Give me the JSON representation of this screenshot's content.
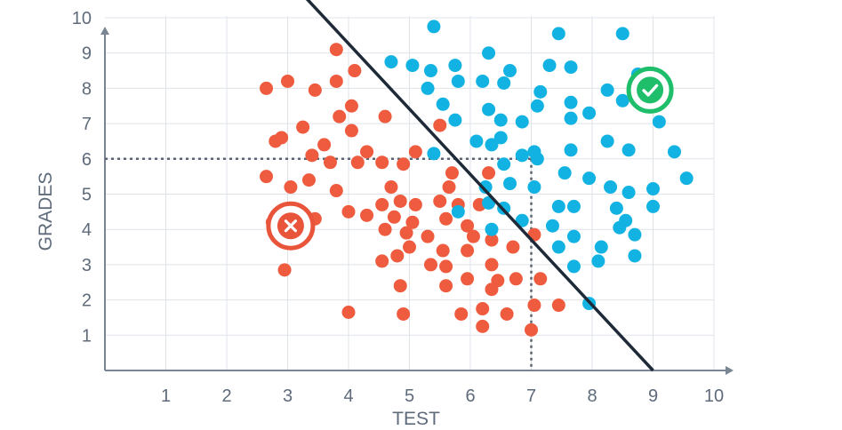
{
  "chart_data": {
    "type": "scatter",
    "title": "",
    "xlabel": "TEST",
    "ylabel": "GRADES",
    "xlim": [
      0,
      10
    ],
    "ylim": [
      0,
      10
    ],
    "grid": true,
    "xticks": [
      1,
      2,
      3,
      4,
      5,
      6,
      7,
      8,
      9,
      10
    ],
    "yticks": [
      1,
      2,
      3,
      4,
      5,
      6,
      7,
      8,
      9,
      10
    ],
    "colors": {
      "rejected": "#ee5b3e",
      "accepted": "#12b3e2",
      "reject_marker": "#e9553b",
      "accept_marker": "#1fbe6a"
    },
    "series": [
      {
        "name": "rejected",
        "points": [
          [
            2.65,
            8.0
          ],
          [
            3.0,
            8.2
          ],
          [
            3.45,
            7.95
          ],
          [
            3.8,
            9.1
          ],
          [
            3.8,
            8.2
          ],
          [
            4.1,
            8.5
          ],
          [
            4.05,
            7.5
          ],
          [
            3.25,
            6.9
          ],
          [
            3.85,
            7.2
          ],
          [
            4.05,
            6.8
          ],
          [
            4.6,
            7.2
          ],
          [
            2.8,
            6.5
          ],
          [
            2.9,
            6.6
          ],
          [
            3.4,
            6.1
          ],
          [
            3.6,
            6.4
          ],
          [
            4.3,
            6.2
          ],
          [
            4.15,
            5.9
          ],
          [
            3.7,
            5.9
          ],
          [
            4.55,
            5.9
          ],
          [
            4.9,
            5.85
          ],
          [
            5.1,
            6.2
          ],
          [
            5.5,
            6.95
          ],
          [
            5.7,
            5.6
          ],
          [
            6.3,
            5.6
          ],
          [
            2.65,
            5.5
          ],
          [
            3.05,
            5.2
          ],
          [
            3.35,
            5.4
          ],
          [
            3.8,
            5.1
          ],
          [
            4.7,
            5.2
          ],
          [
            4.85,
            4.8
          ],
          [
            5.1,
            4.7
          ],
          [
            5.5,
            4.8
          ],
          [
            5.65,
            5.2
          ],
          [
            5.8,
            4.7
          ],
          [
            6.15,
            4.7
          ],
          [
            2.75,
            4.2
          ],
          [
            3.45,
            4.3
          ],
          [
            4.0,
            4.5
          ],
          [
            4.3,
            4.4
          ],
          [
            4.55,
            4.7
          ],
          [
            4.75,
            4.35
          ],
          [
            5.05,
            4.2
          ],
          [
            5.6,
            4.3
          ],
          [
            5.95,
            4.1
          ],
          [
            4.6,
            4.0
          ],
          [
            4.95,
            3.9
          ],
          [
            5.3,
            3.8
          ],
          [
            5.55,
            3.4
          ],
          [
            6.05,
            3.8
          ],
          [
            6.35,
            3.7
          ],
          [
            6.7,
            3.5
          ],
          [
            7.05,
            3.85
          ],
          [
            4.55,
            3.1
          ],
          [
            4.8,
            3.25
          ],
          [
            5.0,
            3.5
          ],
          [
            5.35,
            3.0
          ],
          [
            5.6,
            2.95
          ],
          [
            5.95,
            3.4
          ],
          [
            6.35,
            3.0
          ],
          [
            6.45,
            2.55
          ],
          [
            6.75,
            2.6
          ],
          [
            2.95,
            2.85
          ],
          [
            4.85,
            2.4
          ],
          [
            5.6,
            2.4
          ],
          [
            5.95,
            2.6
          ],
          [
            6.35,
            2.3
          ],
          [
            7.15,
            2.6
          ],
          [
            3.0,
            4.1
          ],
          [
            6.6,
            1.6
          ],
          [
            7.05,
            1.85
          ],
          [
            7.45,
            1.85
          ],
          [
            4.0,
            1.65
          ],
          [
            4.9,
            1.6
          ],
          [
            5.85,
            1.6
          ],
          [
            6.2,
            1.75
          ],
          [
            6.2,
            1.25
          ],
          [
            7.0,
            1.15
          ]
        ]
      },
      {
        "name": "accepted",
        "points": [
          [
            5.4,
            9.75
          ],
          [
            7.45,
            9.55
          ],
          [
            8.5,
            9.55
          ],
          [
            6.3,
            9.0
          ],
          [
            4.7,
            8.75
          ],
          [
            5.05,
            8.65
          ],
          [
            5.35,
            8.5
          ],
          [
            5.75,
            8.65
          ],
          [
            6.65,
            8.5
          ],
          [
            7.3,
            8.65
          ],
          [
            7.65,
            8.6
          ],
          [
            5.3,
            8.0
          ],
          [
            5.8,
            8.2
          ],
          [
            6.2,
            8.2
          ],
          [
            6.55,
            8.15
          ],
          [
            7.15,
            7.9
          ],
          [
            7.65,
            7.6
          ],
          [
            8.25,
            7.95
          ],
          [
            8.75,
            8.4
          ],
          [
            5.55,
            7.55
          ],
          [
            5.75,
            7.1
          ],
          [
            6.3,
            7.4
          ],
          [
            6.5,
            7.1
          ],
          [
            6.85,
            7.05
          ],
          [
            7.1,
            7.5
          ],
          [
            7.65,
            7.15
          ],
          [
            7.95,
            7.3
          ],
          [
            8.5,
            7.65
          ],
          [
            9.1,
            7.05
          ],
          [
            6.1,
            6.5
          ],
          [
            6.35,
            6.4
          ],
          [
            6.5,
            6.6
          ],
          [
            6.85,
            6.1
          ],
          [
            7.05,
            6.2
          ],
          [
            7.1,
            6.0
          ],
          [
            7.65,
            6.25
          ],
          [
            8.25,
            6.5
          ],
          [
            8.6,
            6.25
          ],
          [
            9.35,
            6.2
          ],
          [
            5.4,
            6.15
          ],
          [
            6.25,
            5.2
          ],
          [
            6.55,
            5.85
          ],
          [
            6.65,
            5.3
          ],
          [
            7.05,
            5.2
          ],
          [
            7.55,
            5.6
          ],
          [
            7.95,
            5.45
          ],
          [
            8.3,
            5.2
          ],
          [
            8.6,
            5.05
          ],
          [
            9.0,
            5.15
          ],
          [
            9.55,
            5.45
          ],
          [
            6.3,
            4.75
          ],
          [
            6.55,
            4.6
          ],
          [
            7.45,
            4.65
          ],
          [
            7.7,
            4.65
          ],
          [
            8.4,
            4.6
          ],
          [
            8.55,
            4.25
          ],
          [
            9.0,
            4.65
          ],
          [
            5.8,
            4.5
          ],
          [
            6.35,
            4.0
          ],
          [
            6.85,
            4.25
          ],
          [
            7.35,
            4.1
          ],
          [
            7.7,
            3.8
          ],
          [
            8.45,
            4.05
          ],
          [
            8.7,
            3.85
          ],
          [
            7.45,
            3.5
          ],
          [
            8.15,
            3.5
          ],
          [
            8.7,
            3.25
          ],
          [
            7.7,
            2.95
          ],
          [
            8.1,
            3.1
          ],
          [
            7.95,
            1.9
          ]
        ]
      }
    ],
    "decision_line": {
      "x1": 3.2,
      "y1": 10.75,
      "x2": 9.0,
      "y2": 0.0
    },
    "reference_point": {
      "x": 7,
      "y": 6
    },
    "markers": [
      {
        "kind": "reject",
        "x": 3.05,
        "y": 4.1
      },
      {
        "kind": "accept",
        "x": 8.95,
        "y": 7.95
      }
    ]
  }
}
